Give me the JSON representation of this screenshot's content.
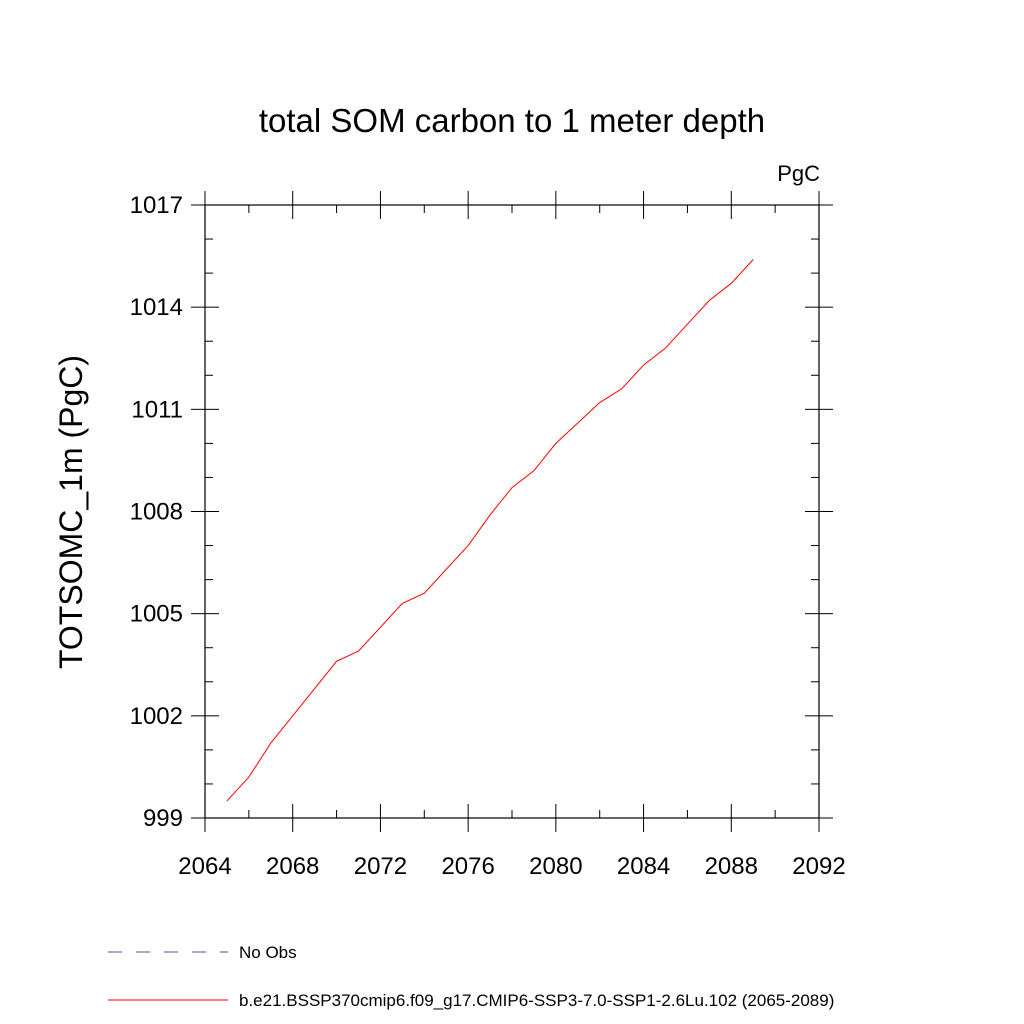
{
  "chart_data": {
    "type": "line",
    "title": "total SOM carbon to 1 meter depth",
    "units": "PgC",
    "ylabel": "TOTSOMC_1m  (PgC)",
    "xlabel": "",
    "xlim": [
      2064,
      2092
    ],
    "ylim": [
      999,
      1017
    ],
    "x_ticks": [
      2064,
      2068,
      2072,
      2076,
      2080,
      2084,
      2088,
      2092
    ],
    "y_ticks": [
      999,
      1002,
      1005,
      1008,
      1011,
      1014,
      1017
    ],
    "grid": false,
    "legend_position": "bottom-left",
    "series": [
      {
        "name": "b.e21.BSSP370cmip6.f09_g17.CMIP6-SSP3-7.0-SSP1-2.6Lu.102 (2065-2089)",
        "color": "#ff0000",
        "dash": "solid",
        "x": [
          2065,
          2066,
          2067,
          2068,
          2069,
          2070,
          2071,
          2072,
          2073,
          2074,
          2075,
          2076,
          2077,
          2078,
          2079,
          2080,
          2081,
          2082,
          2083,
          2084,
          2085,
          2086,
          2087,
          2088,
          2089
        ],
        "y": [
          999.5,
          1000.2,
          1001.2,
          1002.0,
          1002.8,
          1003.6,
          1003.9,
          1004.6,
          1005.3,
          1005.6,
          1006.3,
          1007.0,
          1007.9,
          1008.7,
          1009.2,
          1010.0,
          1010.6,
          1011.2,
          1011.6,
          1012.3,
          1012.8,
          1013.5,
          1014.2,
          1014.7,
          1015.4
        ]
      }
    ],
    "legend": [
      {
        "label": "No Obs",
        "color": "#5b4e9e",
        "dash": "dashed"
      },
      {
        "label": "b.e21.BSSP370cmip6.f09_g17.CMIP6-SSP3-7.0-SSP1-2.6Lu.102 (2065-2089)",
        "color": "#ff0000",
        "dash": "solid"
      }
    ]
  }
}
